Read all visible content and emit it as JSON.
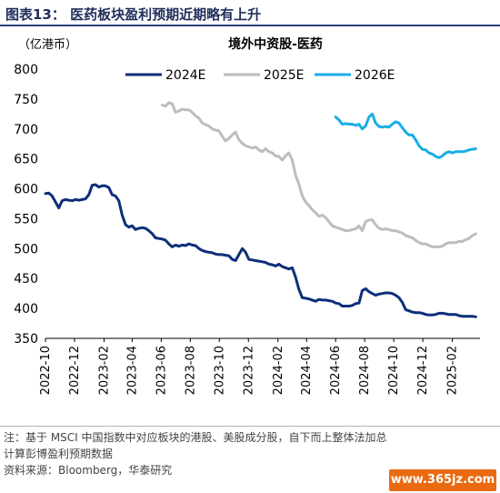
{
  "header": {
    "figure_label": "图表13：",
    "figure_title": "医药板块盈利预期近期略有上升"
  },
  "footer": {
    "note": "注：基于 MSCI 中国指数中对应板块的港股、美股成分股，自下而上整体法加总",
    "note_line2": "计算彭博盈利预期数据",
    "source": "资料来源：Bloomberg，华泰研究",
    "watermark": "www.365jz.com"
  },
  "colors": {
    "series_2024": "#0d2f7a",
    "series_2025": "#bdbdbd",
    "series_2026": "#19aee6",
    "header_text": "#1f2d5a"
  },
  "chart_data": {
    "type": "line",
    "title": "境外中资股-医药",
    "ylabel": "（亿港币）",
    "xlabel": "",
    "ylim": [
      350,
      800
    ],
    "yticks": [
      350,
      400,
      450,
      500,
      550,
      600,
      650,
      700,
      750,
      800
    ],
    "xlim": [
      "2022-10-01",
      "2025-03-31"
    ],
    "xticks": [
      "2022-10",
      "2022-12",
      "2023-02",
      "2023-04",
      "2023-06",
      "2023-08",
      "2023-10",
      "2023-12",
      "2024-02",
      "2024-04",
      "2024-06",
      "2024-08",
      "2024-10",
      "2024-12",
      "2025-02"
    ],
    "grid": false,
    "legend": "top",
    "series": [
      {
        "name": "2024E",
        "color": "#0d2f7a",
        "x": [
          "2022-10-01",
          "2022-10-08",
          "2022-10-15",
          "2022-10-22",
          "2022-10-29",
          "2022-11-05",
          "2022-11-12",
          "2022-11-19",
          "2022-11-26",
          "2022-12-03",
          "2022-12-10",
          "2022-12-17",
          "2022-12-24",
          "2022-12-31",
          "2023-01-07",
          "2023-01-14",
          "2023-01-21",
          "2023-01-28",
          "2023-02-04",
          "2023-02-11",
          "2023-02-18",
          "2023-02-25",
          "2023-03-04",
          "2023-03-11",
          "2023-03-18",
          "2023-03-25",
          "2023-04-01",
          "2023-04-08",
          "2023-04-15",
          "2023-04-22",
          "2023-04-29",
          "2023-05-06",
          "2023-05-13",
          "2023-05-20",
          "2023-05-27",
          "2023-06-03",
          "2023-06-10",
          "2023-06-17",
          "2023-06-24",
          "2023-07-01",
          "2023-07-08",
          "2023-07-15",
          "2023-07-22",
          "2023-07-29",
          "2023-08-05",
          "2023-08-12",
          "2023-08-19",
          "2023-08-26",
          "2023-09-02",
          "2023-09-09",
          "2023-09-16",
          "2023-09-23",
          "2023-09-30",
          "2023-10-07",
          "2023-10-14",
          "2023-10-21",
          "2023-10-28",
          "2023-11-04",
          "2023-11-11",
          "2023-11-18",
          "2023-11-25",
          "2023-12-02",
          "2023-12-09",
          "2023-12-16",
          "2023-12-23",
          "2023-12-30",
          "2024-01-06",
          "2024-01-13",
          "2024-01-20",
          "2024-01-27",
          "2024-02-03",
          "2024-02-10",
          "2024-02-17",
          "2024-02-24",
          "2024-03-02",
          "2024-03-09",
          "2024-03-16",
          "2024-03-23",
          "2024-03-30",
          "2024-04-06",
          "2024-04-13",
          "2024-04-20",
          "2024-04-27",
          "2024-05-04",
          "2024-05-11",
          "2024-05-18",
          "2024-05-25",
          "2024-06-01",
          "2024-06-08",
          "2024-06-15",
          "2024-06-22",
          "2024-06-29",
          "2024-07-06",
          "2024-07-13",
          "2024-07-20",
          "2024-07-27",
          "2024-08-03",
          "2024-08-10",
          "2024-08-17",
          "2024-08-24",
          "2024-08-31",
          "2024-09-07",
          "2024-09-14",
          "2024-09-21",
          "2024-09-28",
          "2024-10-05",
          "2024-10-12",
          "2024-10-19",
          "2024-10-26",
          "2024-11-02",
          "2024-11-09",
          "2024-11-16",
          "2024-11-23",
          "2024-11-30",
          "2024-12-07",
          "2024-12-14",
          "2024-12-21",
          "2024-12-28",
          "2025-01-04",
          "2025-01-11",
          "2025-01-18",
          "2025-01-25",
          "2025-02-01",
          "2025-02-08",
          "2025-02-15",
          "2025-02-22",
          "2025-03-01",
          "2025-03-08",
          "2025-03-15",
          "2025-03-22"
        ],
        "values": [
          592,
          593,
          588,
          578,
          568,
          580,
          582,
          581,
          580,
          582,
          581,
          582,
          583,
          590,
          606,
          607,
          603,
          605,
          605,
          602,
          590,
          588,
          580,
          556,
          540,
          536,
          538,
          532,
          534,
          535,
          534,
          530,
          525,
          518,
          517,
          516,
          514,
          508,
          503,
          506,
          504,
          506,
          505,
          508,
          506,
          505,
          500,
          497,
          495,
          494,
          493,
          491,
          490,
          490,
          489,
          488,
          482,
          480,
          490,
          500,
          494,
          482,
          481,
          480,
          479,
          478,
          477,
          474,
          473,
          471,
          474,
          470,
          468,
          466,
          468,
          452,
          432,
          418,
          417,
          416,
          414,
          412,
          415,
          414,
          414,
          413,
          412,
          409,
          408,
          404,
          404,
          404,
          405,
          408,
          409,
          430,
          433,
          428,
          425,
          422,
          424,
          425,
          426,
          426,
          425,
          422,
          418,
          410,
          398,
          396,
          394,
          393,
          393,
          392,
          390,
          389,
          389,
          390,
          392,
          392,
          391,
          390,
          390,
          390,
          388,
          387,
          387,
          387,
          387,
          386
        ]
      },
      {
        "name": "2025E",
        "color": "#bdbdbd",
        "x": [
          "2023-06-03",
          "2023-06-10",
          "2023-06-17",
          "2023-06-24",
          "2023-07-01",
          "2023-07-08",
          "2023-07-15",
          "2023-07-22",
          "2023-07-29",
          "2023-08-05",
          "2023-08-12",
          "2023-08-19",
          "2023-08-26",
          "2023-09-02",
          "2023-09-09",
          "2023-09-16",
          "2023-09-23",
          "2023-09-30",
          "2023-10-07",
          "2023-10-14",
          "2023-10-21",
          "2023-10-28",
          "2023-11-04",
          "2023-11-11",
          "2023-11-18",
          "2023-11-25",
          "2023-12-02",
          "2023-12-09",
          "2023-12-16",
          "2023-12-23",
          "2023-12-30",
          "2024-01-06",
          "2024-01-13",
          "2024-01-20",
          "2024-01-27",
          "2024-02-03",
          "2024-02-10",
          "2024-02-17",
          "2024-02-24",
          "2024-03-02",
          "2024-03-09",
          "2024-03-16",
          "2024-03-23",
          "2024-03-30",
          "2024-04-06",
          "2024-04-13",
          "2024-04-20",
          "2024-04-27",
          "2024-05-04",
          "2024-05-11",
          "2024-05-18",
          "2024-05-25",
          "2024-06-01",
          "2024-06-08",
          "2024-06-15",
          "2024-06-22",
          "2024-06-29",
          "2024-07-06",
          "2024-07-13",
          "2024-07-20",
          "2024-07-27",
          "2024-08-03",
          "2024-08-10",
          "2024-08-17",
          "2024-08-24",
          "2024-08-31",
          "2024-09-07",
          "2024-09-14",
          "2024-09-21",
          "2024-09-28",
          "2024-10-05",
          "2024-10-12",
          "2024-10-19",
          "2024-10-26",
          "2024-11-02",
          "2024-11-09",
          "2024-11-16",
          "2024-11-23",
          "2024-11-30",
          "2024-12-07",
          "2024-12-14",
          "2024-12-21",
          "2024-12-28",
          "2025-01-04",
          "2025-01-11",
          "2025-01-18",
          "2025-01-25",
          "2025-02-01",
          "2025-02-08",
          "2025-02-15",
          "2025-02-22",
          "2025-03-01",
          "2025-03-08",
          "2025-03-15",
          "2025-03-22"
        ],
        "values": [
          740,
          738,
          744,
          742,
          728,
          730,
          733,
          732,
          732,
          728,
          722,
          718,
          710,
          707,
          705,
          700,
          698,
          697,
          688,
          680,
          684,
          690,
          695,
          682,
          676,
          672,
          670,
          668,
          670,
          665,
          662,
          667,
          662,
          660,
          655,
          654,
          648,
          655,
          660,
          648,
          622,
          608,
          588,
          578,
          572,
          565,
          560,
          554,
          556,
          552,
          545,
          538,
          536,
          534,
          532,
          530,
          530,
          532,
          533,
          538,
          530,
          545,
          548,
          548,
          540,
          534,
          532,
          533,
          532,
          530,
          530,
          528,
          526,
          522,
          520,
          518,
          514,
          510,
          508,
          508,
          505,
          503,
          503,
          503,
          504,
          508,
          510,
          510,
          510,
          512,
          512,
          515,
          517,
          522,
          525
        ]
      },
      {
        "name": "2026E",
        "color": "#19aee6",
        "x": [
          "2024-06-01",
          "2024-06-08",
          "2024-06-15",
          "2024-06-22",
          "2024-06-29",
          "2024-07-06",
          "2024-07-13",
          "2024-07-20",
          "2024-07-27",
          "2024-08-03",
          "2024-08-10",
          "2024-08-17",
          "2024-08-24",
          "2024-08-31",
          "2024-09-07",
          "2024-09-14",
          "2024-09-21",
          "2024-09-28",
          "2024-10-05",
          "2024-10-12",
          "2024-10-19",
          "2024-10-26",
          "2024-11-02",
          "2024-11-09",
          "2024-11-16",
          "2024-11-23",
          "2024-11-30",
          "2024-12-07",
          "2024-12-14",
          "2024-12-21",
          "2024-12-28",
          "2025-01-04",
          "2025-01-11",
          "2025-01-18",
          "2025-01-25",
          "2025-02-01",
          "2025-02-08",
          "2025-02-15",
          "2025-02-22",
          "2025-03-01",
          "2025-03-08",
          "2025-03-15",
          "2025-03-22"
        ],
        "values": [
          720,
          715,
          708,
          709,
          708,
          708,
          706,
          708,
          700,
          705,
          720,
          725,
          710,
          704,
          703,
          704,
          703,
          708,
          712,
          710,
          702,
          695,
          690,
          690,
          682,
          672,
          666,
          665,
          660,
          658,
          654,
          652,
          655,
          660,
          662,
          660,
          662,
          662,
          662,
          663,
          665,
          666,
          667
        ]
      }
    ]
  }
}
